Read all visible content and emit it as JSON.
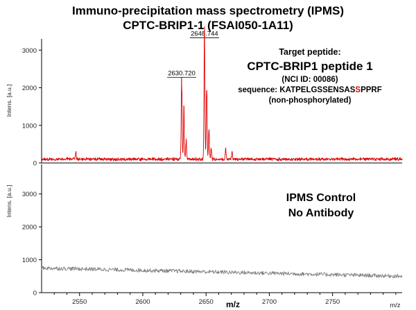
{
  "figure": {
    "title_line1": "Immuno-precipitation mass spectrometry (IPMS)",
    "title_line2": "CPTC-BRIP1-1 (FSAI050-1A11)"
  },
  "top_panel": {
    "annotation": {
      "heading": "Target peptide:",
      "peptide": "CPTC-BRIP1 peptide 1",
      "nci_id": "(NCI ID: 00086)",
      "sequence_label": "sequence: ",
      "sequence_before": "KATPELGSSENSAS",
      "sequence_highlight": "S",
      "sequence_after": "PPRF",
      "state": "(non-phosphorylated)"
    },
    "peak_labels": [
      "2630.720",
      "2648.744"
    ]
  },
  "bottom_panel": {
    "annotation_line1": "IPMS Control",
    "annotation_line2": "No Antibody"
  },
  "axes": {
    "ylabel": "Intens. [a.u.]",
    "xlabel": "m/z",
    "xlabel_corner": "m/z"
  },
  "colors": {
    "trace_top": "#e00000",
    "trace_bottom": "#808080",
    "highlight": "#e00000"
  },
  "chart_data": [
    {
      "type": "line",
      "name": "top",
      "xlim": [
        2520,
        2805
      ],
      "ylim": [
        0,
        3300
      ],
      "yticks": [
        0,
        1000,
        2000,
        3000
      ],
      "xticks": [],
      "baseline": 100,
      "peaks": [
        {
          "mz": 2630.72,
          "intensity": 2150,
          "label": "2630.720"
        },
        {
          "mz": 2632.5,
          "intensity": 1300
        },
        {
          "mz": 2634.3,
          "intensity": 500
        },
        {
          "mz": 2648.744,
          "intensity": 3200,
          "label": "2648.744"
        },
        {
          "mz": 2650.5,
          "intensity": 2000
        },
        {
          "mz": 2652.3,
          "intensity": 850
        },
        {
          "mz": 2654.1,
          "intensity": 300
        },
        {
          "mz": 2665.5,
          "intensity": 280
        },
        {
          "mz": 2670.5,
          "intensity": 230
        },
        {
          "mz": 2547.0,
          "intensity": 200
        }
      ]
    },
    {
      "type": "line",
      "name": "bottom",
      "xlim": [
        2520,
        2805
      ],
      "ylim": [
        0,
        3900
      ],
      "yticks": [
        0,
        1000,
        2000,
        3000
      ],
      "xticks": [
        2550,
        2600,
        2650,
        2700,
        2750
      ],
      "trend": {
        "x": [
          2520,
          2805
        ],
        "y": [
          750,
          500
        ]
      }
    }
  ]
}
